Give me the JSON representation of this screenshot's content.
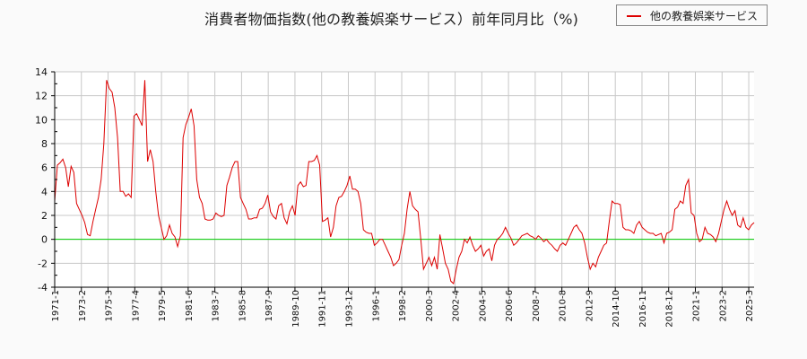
{
  "header": {
    "title": "消費者物価指数(他の教養娯楽サービス）前年同月比（%)"
  },
  "legend": {
    "items": [
      {
        "label": "他の教養娯楽サービス",
        "color": "#dd0000"
      }
    ]
  },
  "colors": {
    "line": "#dd0000",
    "zero_line": "#00cc00",
    "grid": "#c8c8c8",
    "axis": "#000000",
    "background": "#fafafa",
    "plot_background": "#ffffff"
  },
  "chart_data": {
    "type": "line",
    "title": "消費者物価指数(他の教養娯楽サービス）前年同月比（%)",
    "xlabel": "",
    "ylabel": "",
    "ylim": [
      -4,
      14
    ],
    "yticks": [
      14,
      12,
      10,
      8,
      6,
      4,
      2,
      0,
      -2,
      -4
    ],
    "xticks": [
      "1971-1",
      "1973-2",
      "1975-3",
      "1977-4",
      "1979-5",
      "1981-6",
      "1983-7",
      "1985-8",
      "1987-9",
      "1989-10",
      "1991-11",
      "1993-12",
      "1996-1",
      "1998-2",
      "2000-3",
      "2002-4",
      "2004-5",
      "2006-6",
      "2008-7",
      "2010-8",
      "2012-9",
      "2014-10",
      "2016-11",
      "2018-12",
      "2021-1",
      "2023-2",
      "2025-3"
    ],
    "grid": true,
    "legend_position": "top-right",
    "reference_line": {
      "y": 0,
      "color": "#00cc00"
    },
    "series": [
      {
        "name": "他の教養娯楽サービス",
        "x_start": "1971-1",
        "x_step_months": 3,
        "values": [
          3.2,
          6.2,
          6.4,
          6.7,
          6.0,
          4.4,
          6.1,
          5.6,
          3.0,
          2.5,
          2.0,
          1.4,
          0.4,
          0.3,
          1.5,
          2.5,
          3.5,
          5.0,
          8.0,
          13.3,
          12.6,
          12.3,
          11.0,
          8.5,
          4.0,
          4.0,
          3.6,
          3.8,
          3.5,
          10.3,
          10.5,
          10.0,
          9.5,
          13.3,
          6.5,
          7.5,
          6.5,
          4.0,
          2.0,
          1.0,
          0.0,
          0.3,
          1.2,
          0.5,
          0.2,
          -0.6,
          0.3,
          8.5,
          9.6,
          10.2,
          10.9,
          9.5,
          5.0,
          3.5,
          3.0,
          1.7,
          1.6,
          1.6,
          1.7,
          2.2,
          2.0,
          1.9,
          2.0,
          4.5,
          5.2,
          6.0,
          6.5,
          6.5,
          3.5,
          3.0,
          2.5,
          1.7,
          1.7,
          1.8,
          1.8,
          2.5,
          2.6,
          3.0,
          3.7,
          2.3,
          1.9,
          1.7,
          2.8,
          3.0,
          1.8,
          1.3,
          2.3,
          2.8,
          2.0,
          4.5,
          4.8,
          4.4,
          4.5,
          6.5,
          6.5,
          6.6,
          7.0,
          6.2,
          1.5,
          1.6,
          1.8,
          0.2,
          1.0,
          2.8,
          3.5,
          3.6,
          4.0,
          4.5,
          5.3,
          4.2,
          4.2,
          4.0,
          3.0,
          0.8,
          0.6,
          0.5,
          0.5,
          -0.5,
          -0.3,
          0.0,
          0.0,
          -0.5,
          -1.0,
          -1.5,
          -2.2,
          -2.0,
          -1.7,
          -0.5,
          0.5,
          2.5,
          4.0,
          2.8,
          2.5,
          2.3,
          0.0,
          -2.5,
          -2.0,
          -1.5,
          -2.2,
          -1.5,
          -2.5,
          0.4,
          -0.8,
          -2.0,
          -2.5,
          -3.5,
          -3.7,
          -2.5,
          -1.5,
          -1.0,
          0.0,
          -0.3,
          0.2,
          -0.5,
          -1.0,
          -0.8,
          -0.5,
          -1.4,
          -1.0,
          -0.8,
          -1.8,
          -0.5,
          0.0,
          0.2,
          0.5,
          1.0,
          0.5,
          0.1,
          -0.5,
          -0.3,
          0.0,
          0.3,
          0.4,
          0.5,
          0.3,
          0.2,
          0.0,
          0.3,
          0.1,
          -0.2,
          0.0,
          -0.3,
          -0.5,
          -0.8,
          -1.0,
          -0.5,
          -0.3,
          -0.5,
          0.0,
          0.5,
          1.0,
          1.2,
          0.8,
          0.5,
          -0.3,
          -1.5,
          -2.5,
          -2.0,
          -2.3,
          -1.5,
          -1.0,
          -0.5,
          -0.3,
          1.5,
          3.2,
          3.0,
          3.0,
          2.9,
          1.0,
          0.8,
          0.8,
          0.7,
          0.5,
          1.2,
          1.5,
          1.0,
          0.8,
          0.6,
          0.5,
          0.5,
          0.3,
          0.4,
          0.5,
          -0.3,
          0.5,
          0.6,
          0.8,
          2.5,
          2.7,
          3.2,
          3.0,
          4.5,
          5.0,
          2.2,
          2.0,
          0.5,
          -0.2,
          0.0,
          1.0,
          0.5,
          0.4,
          0.2,
          -0.2,
          0.5,
          1.5,
          2.5,
          3.2,
          2.5,
          2.0,
          2.4,
          1.2,
          1.0,
          1.8,
          1.0,
          0.8,
          1.2,
          1.4
        ]
      }
    ]
  }
}
